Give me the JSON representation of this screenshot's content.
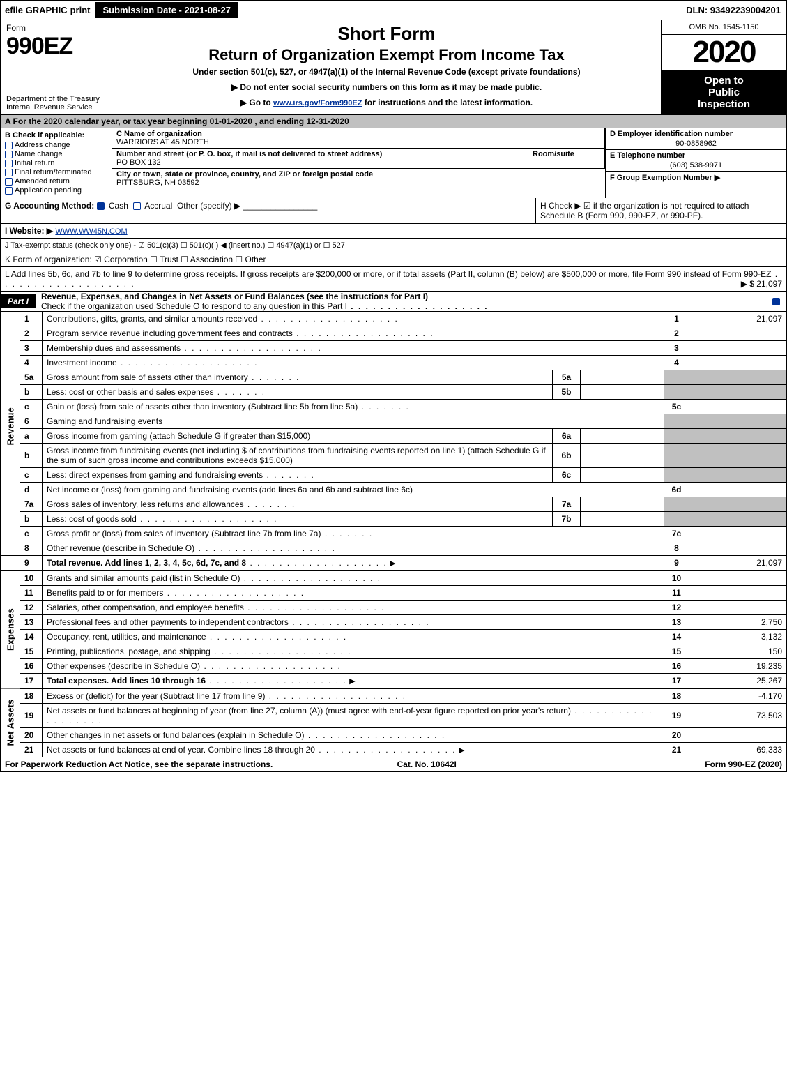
{
  "top_bar": {
    "efile": "efile GRAPHIC",
    "print": "print",
    "submission_btn": "Submission Date - 2021-08-27",
    "dln": "DLN: 93492239004201"
  },
  "header": {
    "form_label": "Form",
    "form_number": "990EZ",
    "dept_line1": "Department of the Treasury",
    "dept_line2": "Internal Revenue Service",
    "title_short": "Short Form",
    "title_main": "Return of Organization Exempt From Income Tax",
    "subtitle": "Under section 501(c), 527, or 4947(a)(1) of the Internal Revenue Code (except private foundations)",
    "notice1": "▶ Do not enter social security numbers on this form as it may be made public.",
    "notice2_pre": "▶ Go to ",
    "notice2_link": "www.irs.gov/Form990EZ",
    "notice2_post": " for instructions and the latest information.",
    "omb": "OMB No. 1545-1150",
    "year": "2020",
    "open_line1": "Open to",
    "open_line2": "Public",
    "open_line3": "Inspection"
  },
  "section_a": "A  For the 2020 calendar year, or tax year beginning 01-01-2020 , and ending 12-31-2020",
  "col_b": {
    "header": "B  Check if applicable:",
    "items": [
      {
        "label": "Address change",
        "checked": false
      },
      {
        "label": "Name change",
        "checked": false
      },
      {
        "label": "Initial return",
        "checked": false
      },
      {
        "label": "Final return/terminated",
        "checked": false
      },
      {
        "label": "Amended return",
        "checked": false
      },
      {
        "label": "Application pending",
        "checked": false
      }
    ]
  },
  "col_c": {
    "name_lbl": "C Name of organization",
    "name_val": "WARRIORS AT 45 NORTH",
    "addr_lbl": "Number and street (or P. O. box, if mail is not delivered to street address)",
    "addr_val": "PO BOX 132",
    "room_lbl": "Room/suite",
    "city_lbl": "City or town, state or province, country, and ZIP or foreign postal code",
    "city_val": "PITTSBURG, NH  03592"
  },
  "col_def": {
    "d_lbl": "D Employer identification number",
    "d_val": "90-0858962",
    "e_lbl": "E Telephone number",
    "e_val": "(603) 538-9971",
    "f_lbl": "F Group Exemption Number  ▶"
  },
  "g_line": {
    "label": "G Accounting Method: ",
    "cash": "Cash",
    "accrual": "Accrual",
    "other": "Other (specify) ▶"
  },
  "h_line": "H  Check ▶  ☑  if the organization is not required to attach Schedule B (Form 990, 990-EZ, or 990-PF).",
  "i_line": {
    "label": "I Website: ▶",
    "value": "WWW.WW45N.COM"
  },
  "j_line": "J Tax-exempt status (check only one) - ☑ 501(c)(3)  ☐ 501(c)(  ) ◀ (insert no.)  ☐ 4947(a)(1) or  ☐ 527",
  "k_line": "K Form of organization:   ☑ Corporation   ☐ Trust   ☐ Association   ☐ Other",
  "l_line": {
    "text": "L Add lines 5b, 6c, and 7b to line 9 to determine gross receipts. If gross receipts are $200,000 or more, or if total assets (Part II, column (B) below) are $500,000 or more, file Form 990 instead of Form 990-EZ",
    "amount": "▶ $ 21,097"
  },
  "part1": {
    "tab": "Part I",
    "title": "Revenue, Expenses, and Changes in Net Assets or Fund Balances (see the instructions for Part I)",
    "check_line": "Check if the organization used Schedule O to respond to any question in this Part I"
  },
  "side_labels": {
    "revenue": "Revenue",
    "expenses": "Expenses",
    "net_assets": "Net Assets"
  },
  "rows": {
    "r1": {
      "n": "1",
      "desc": "Contributions, gifts, grants, and similar amounts received",
      "ln": "1",
      "val": "21,097"
    },
    "r2": {
      "n": "2",
      "desc": "Program service revenue including government fees and contracts",
      "ln": "2",
      "val": ""
    },
    "r3": {
      "n": "3",
      "desc": "Membership dues and assessments",
      "ln": "3",
      "val": ""
    },
    "r4": {
      "n": "4",
      "desc": "Investment income",
      "ln": "4",
      "val": ""
    },
    "r5a": {
      "n": "5a",
      "desc": "Gross amount from sale of assets other than inventory",
      "sub": "5a"
    },
    "r5b": {
      "n": "b",
      "desc": "Less: cost or other basis and sales expenses",
      "sub": "5b"
    },
    "r5c": {
      "n": "c",
      "desc": "Gain or (loss) from sale of assets other than inventory (Subtract line 5b from line 5a)",
      "ln": "5c",
      "val": ""
    },
    "r6": {
      "n": "6",
      "desc": "Gaming and fundraising events"
    },
    "r6a": {
      "n": "a",
      "desc": "Gross income from gaming (attach Schedule G if greater than $15,000)",
      "sub": "6a"
    },
    "r6b": {
      "n": "b",
      "desc": "Gross income from fundraising events (not including $                of contributions from fundraising events reported on line 1) (attach Schedule G if the sum of such gross income and contributions exceeds $15,000)",
      "sub": "6b"
    },
    "r6c": {
      "n": "c",
      "desc": "Less: direct expenses from gaming and fundraising events",
      "sub": "6c"
    },
    "r6d": {
      "n": "d",
      "desc": "Net income or (loss) from gaming and fundraising events (add lines 6a and 6b and subtract line 6c)",
      "ln": "6d",
      "val": ""
    },
    "r7a": {
      "n": "7a",
      "desc": "Gross sales of inventory, less returns and allowances",
      "sub": "7a"
    },
    "r7b": {
      "n": "b",
      "desc": "Less: cost of goods sold",
      "sub": "7b"
    },
    "r7c": {
      "n": "c",
      "desc": "Gross profit or (loss) from sales of inventory (Subtract line 7b from line 7a)",
      "ln": "7c",
      "val": ""
    },
    "r8": {
      "n": "8",
      "desc": "Other revenue (describe in Schedule O)",
      "ln": "8",
      "val": ""
    },
    "r9": {
      "n": "9",
      "desc": "Total revenue. Add lines 1, 2, 3, 4, 5c, 6d, 7c, and 8",
      "ln": "9",
      "val": "21,097",
      "bold": true
    },
    "r10": {
      "n": "10",
      "desc": "Grants and similar amounts paid (list in Schedule O)",
      "ln": "10",
      "val": ""
    },
    "r11": {
      "n": "11",
      "desc": "Benefits paid to or for members",
      "ln": "11",
      "val": ""
    },
    "r12": {
      "n": "12",
      "desc": "Salaries, other compensation, and employee benefits",
      "ln": "12",
      "val": ""
    },
    "r13": {
      "n": "13",
      "desc": "Professional fees and other payments to independent contractors",
      "ln": "13",
      "val": "2,750"
    },
    "r14": {
      "n": "14",
      "desc": "Occupancy, rent, utilities, and maintenance",
      "ln": "14",
      "val": "3,132"
    },
    "r15": {
      "n": "15",
      "desc": "Printing, publications, postage, and shipping",
      "ln": "15",
      "val": "150"
    },
    "r16": {
      "n": "16",
      "desc": "Other expenses (describe in Schedule O)",
      "ln": "16",
      "val": "19,235"
    },
    "r17": {
      "n": "17",
      "desc": "Total expenses. Add lines 10 through 16",
      "ln": "17",
      "val": "25,267",
      "bold": true
    },
    "r18": {
      "n": "18",
      "desc": "Excess or (deficit) for the year (Subtract line 17 from line 9)",
      "ln": "18",
      "val": "-4,170"
    },
    "r19": {
      "n": "19",
      "desc": "Net assets or fund balances at beginning of year (from line 27, column (A)) (must agree with end-of-year figure reported on prior year's return)",
      "ln": "19",
      "val": "73,503"
    },
    "r20": {
      "n": "20",
      "desc": "Other changes in net assets or fund balances (explain in Schedule O)",
      "ln": "20",
      "val": ""
    },
    "r21": {
      "n": "21",
      "desc": "Net assets or fund balances at end of year. Combine lines 18 through 20",
      "ln": "21",
      "val": "69,333"
    }
  },
  "footer": {
    "left": "For Paperwork Reduction Act Notice, see the separate instructions.",
    "center": "Cat. No. 10642I",
    "right": "Form 990-EZ (2020)"
  },
  "colors": {
    "grey_bg": "#c0c0c0",
    "link": "#003399",
    "black": "#000000",
    "white": "#ffffff"
  }
}
